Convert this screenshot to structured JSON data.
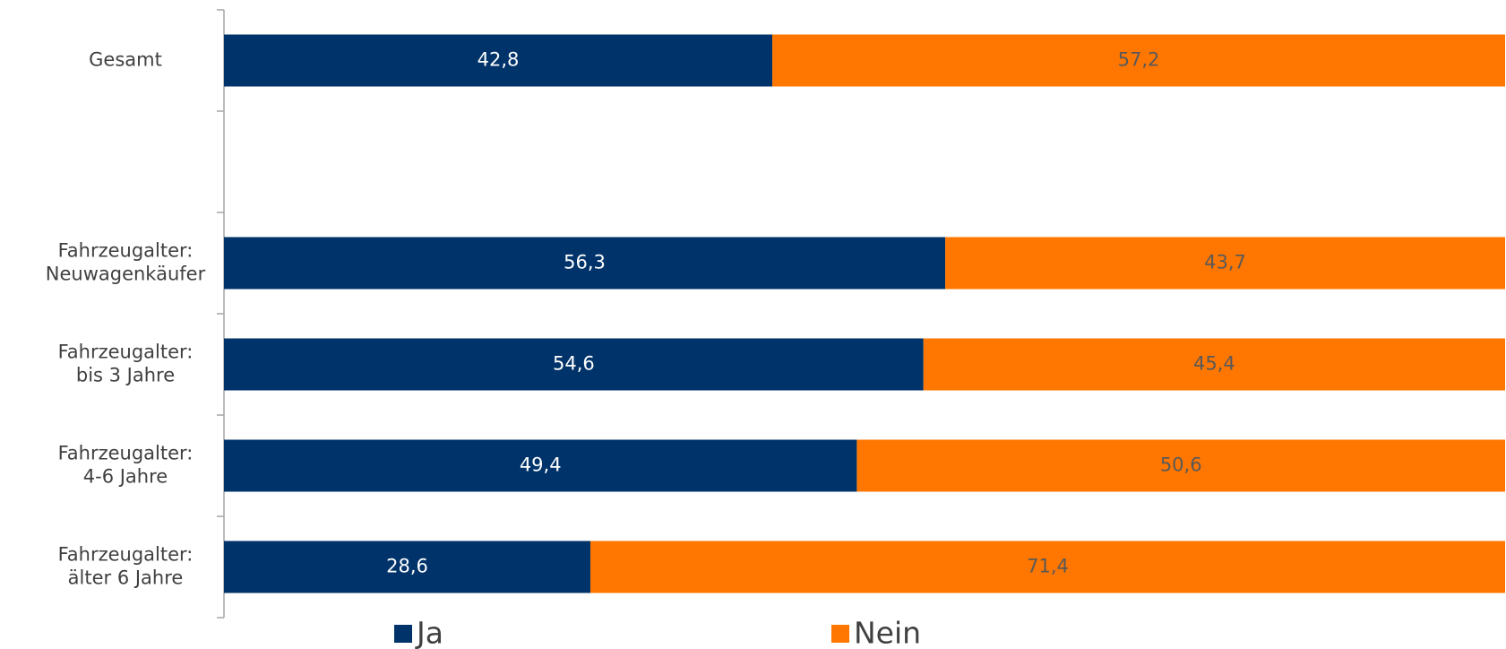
{
  "chart_data": {
    "type": "stacked-bar-horizontal",
    "categories": [
      "Gesamt",
      null,
      "Fahrzeugalter:\nNeuwagenkäufer",
      "Fahrzeugalter:\nbis 3 Jahre",
      "Fahrzeugalter:\n4-6 Jahre",
      "Fahrzeugalter:\nälter 6 Jahre"
    ],
    "series": [
      {
        "name": "Ja",
        "color": "#00336a",
        "values": [
          42.8,
          null,
          56.3,
          54.6,
          49.4,
          28.6
        ],
        "value_labels": [
          "42,8",
          null,
          "56,3",
          "54,6",
          "49,4",
          "28,6"
        ]
      },
      {
        "name": "Nein",
        "color": "#ff7700",
        "values": [
          57.2,
          null,
          43.7,
          45.4,
          50.6,
          71.4
        ],
        "value_labels": [
          "57,2",
          null,
          "43,7",
          "45,4",
          "50,6",
          "71,4"
        ]
      }
    ],
    "xlim": [
      0,
      100
    ],
    "legend": "bottom"
  }
}
